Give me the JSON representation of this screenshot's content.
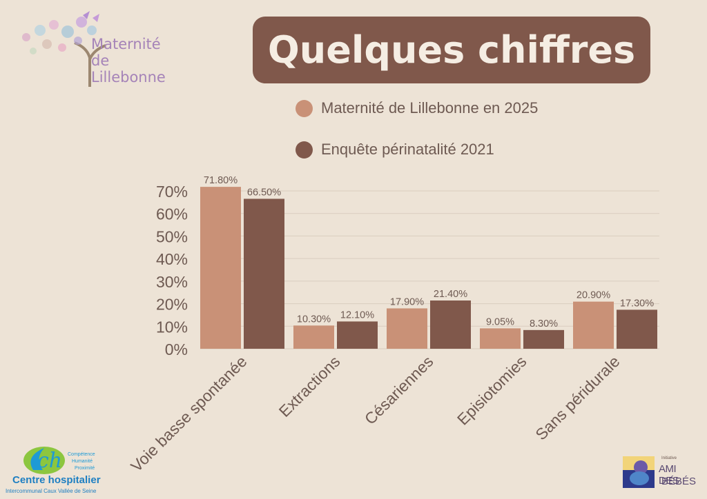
{
  "header": {
    "title": "Quelques chiffres"
  },
  "logo_top": {
    "line1": "Maternité",
    "line2": "de",
    "line3": "Lillebonne"
  },
  "logo_bottom_left": {
    "words": [
      "Compétence",
      "Humanité",
      "Proximité"
    ],
    "name": "Centre hospitalier",
    "sub": "Intercommunal Caux Vallée de Seine"
  },
  "logo_bottom_right": {
    "small": "Initiative",
    "line1": "AMI DES",
    "line2": "BÉBÉS"
  },
  "colors": {
    "background": "#ede3d6",
    "series1": "#c99177",
    "series2": "#80584b",
    "title_box": "#80584b"
  },
  "chart_data": {
    "type": "bar",
    "categories": [
      "Voie basse spontanée",
      "Extractions",
      "Césariennes",
      "Episiotomies",
      "Sans péridurale"
    ],
    "series": [
      {
        "name": "Maternité de Lillebonne en 2025",
        "values": [
          71.8,
          10.3,
          17.9,
          9.05,
          20.9
        ],
        "labels": [
          "71.80%",
          "10.30%",
          "17.90%",
          "9.05%",
          "20.90%"
        ]
      },
      {
        "name": "Enquête périnatalité 2021",
        "values": [
          66.5,
          12.1,
          21.4,
          8.3,
          17.3
        ],
        "labels": [
          "66.50%",
          "12.10%",
          "21.40%",
          "8.30%",
          "17.30%"
        ]
      }
    ],
    "y_ticks": [
      "0%",
      "10%",
      "20%",
      "30%",
      "40%",
      "50%",
      "60%",
      "70%"
    ],
    "ylim": [
      0,
      70
    ],
    "grid": true,
    "legend_position": "top"
  }
}
